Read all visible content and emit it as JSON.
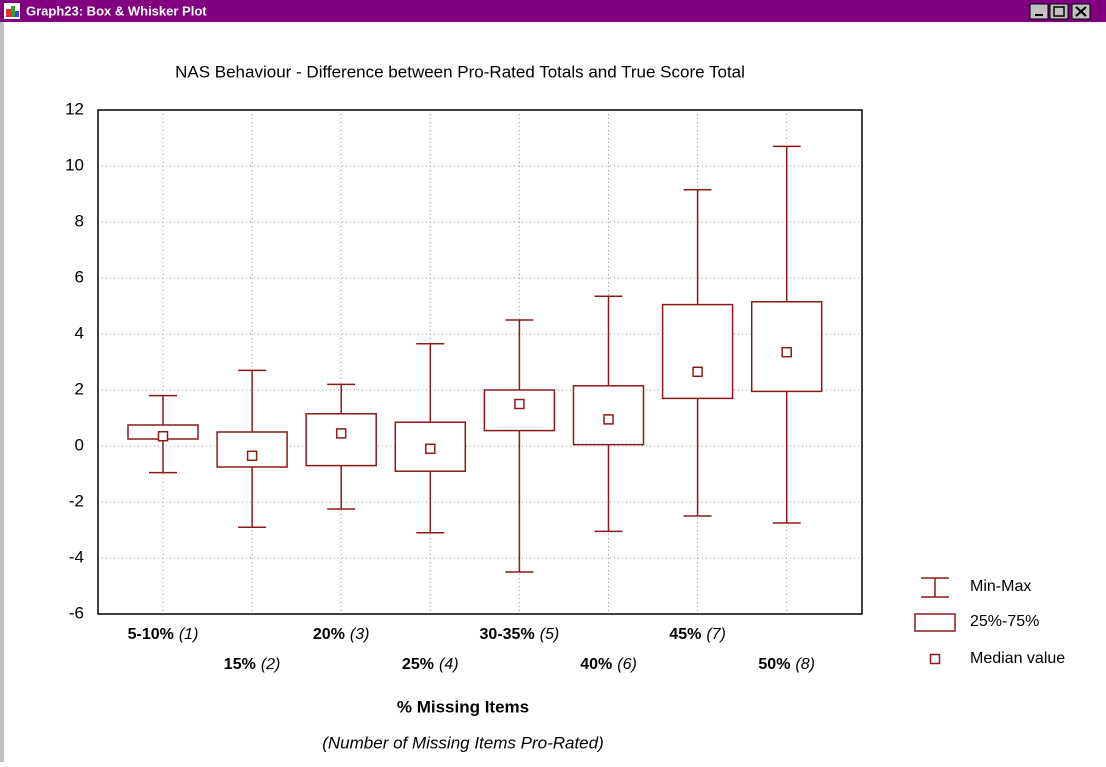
{
  "window": {
    "title": "Graph23: Box & Whisker Plot"
  },
  "chart_data": {
    "type": "box",
    "title": "NAS Behaviour - Difference between Pro-Rated Totals and True Score Total",
    "xlabel": "% Missing Items",
    "xlabel_note": "(Number of Missing Items Pro-Rated)",
    "categories": [
      "5-10%",
      "15%",
      "20%",
      "25%",
      "30-35%",
      "40%",
      "45%",
      "50%"
    ],
    "category_notes": [
      "(1)",
      "(2)",
      "(3)",
      "(4)",
      "(5)",
      "(6)",
      "(7)",
      "(8)"
    ],
    "max": [
      1.8,
      2.7,
      2.2,
      3.65,
      4.5,
      5.35,
      9.15,
      10.7
    ],
    "q3": [
      0.75,
      0.5,
      1.15,
      0.85,
      2.0,
      2.15,
      5.05,
      5.15
    ],
    "median": [
      0.35,
      -0.35,
      0.45,
      -0.1,
      1.5,
      0.95,
      2.65,
      3.35
    ],
    "q1": [
      0.25,
      -0.75,
      -0.7,
      -0.9,
      0.55,
      0.05,
      1.7,
      1.95
    ],
    "min": [
      -0.95,
      -2.9,
      -2.25,
      -3.1,
      -4.5,
      -3.05,
      -2.5,
      -2.75
    ],
    "color": "#8b1a1a",
    "ylim": [
      -6,
      12
    ],
    "yticks": [
      -6,
      -4,
      -2,
      0,
      2,
      4,
      6,
      8,
      10,
      12
    ],
    "grid": true,
    "legend": [
      "Min-Max",
      "25%-75%",
      "Median value"
    ]
  }
}
